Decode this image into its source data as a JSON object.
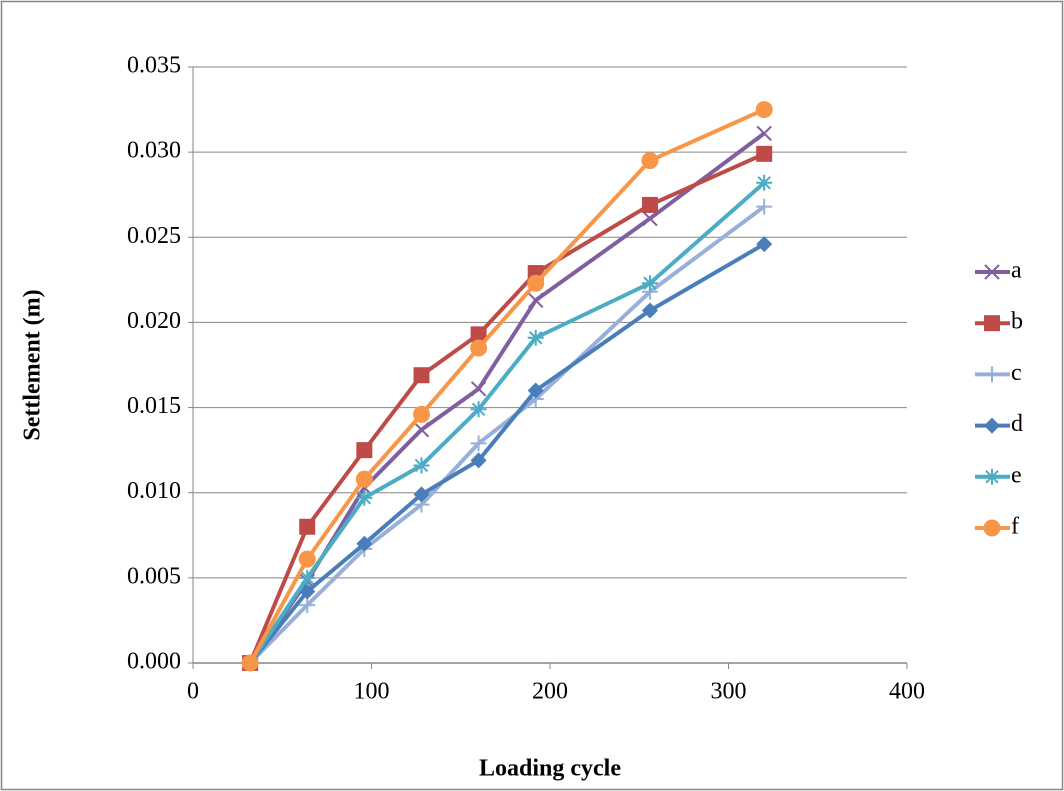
{
  "chart_data": {
    "type": "line",
    "x_label": "Loading cycle",
    "y_label": "Settlement (m)",
    "x": [
      32,
      64,
      96,
      128,
      160,
      192,
      256,
      320
    ],
    "xlim": [
      0,
      400
    ],
    "xticks": [
      0,
      100,
      200,
      300,
      400
    ],
    "ylim": [
      0,
      0.035
    ],
    "yticks": [
      {
        "value": 0,
        "label": "0.000"
      },
      {
        "value": 0.005,
        "label": "0.005"
      },
      {
        "value": 0.01,
        "label": "0.010"
      },
      {
        "value": 0.015,
        "label": "0.015"
      },
      {
        "value": 0.02,
        "label": "0.020"
      },
      {
        "value": 0.025,
        "label": "0.025"
      },
      {
        "value": 0.03,
        "label": "0.030"
      },
      {
        "value": 0.035,
        "label": "0.035"
      }
    ],
    "grid": true,
    "legend": "right",
    "series": [
      {
        "name": "a",
        "color": "#7f5f9f",
        "marker": "x",
        "values": [
          0,
          0.0048,
          0.0103,
          0.0137,
          0.0161,
          0.0213,
          0.0261,
          0.0311
        ]
      },
      {
        "name": "b",
        "color": "#be4b48",
        "marker": "square",
        "values": [
          0,
          0.008,
          0.0125,
          0.0169,
          0.0193,
          0.0229,
          0.0269,
          0.0299
        ]
      },
      {
        "name": "c",
        "color": "#98b0d9",
        "marker": "plus",
        "values": [
          0,
          0.0034,
          0.0067,
          0.0093,
          0.0129,
          0.0155,
          0.0218,
          0.0268
        ]
      },
      {
        "name": "d",
        "color": "#4a7ebb",
        "marker": "diamond",
        "values": [
          0,
          0.0042,
          0.007,
          0.0099,
          0.0119,
          0.016,
          0.0207,
          0.0246
        ]
      },
      {
        "name": "e",
        "color": "#4bacc6",
        "marker": "star",
        "values": [
          0,
          0.005,
          0.0097,
          0.0116,
          0.0149,
          0.0191,
          0.0223,
          0.0282
        ]
      },
      {
        "name": "f",
        "color": "#f79646",
        "marker": "circle",
        "values": [
          0,
          0.0061,
          0.0108,
          0.0146,
          0.0185,
          0.0223,
          0.0295,
          0.0325
        ]
      }
    ]
  }
}
